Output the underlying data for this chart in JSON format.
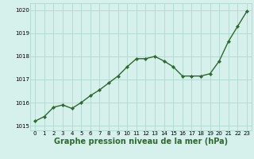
{
  "x": [
    0,
    1,
    2,
    3,
    4,
    5,
    6,
    7,
    8,
    9,
    10,
    11,
    12,
    13,
    14,
    15,
    16,
    17,
    18,
    19,
    20,
    21,
    22,
    23
  ],
  "y": [
    1015.2,
    1015.4,
    1015.8,
    1015.9,
    1015.75,
    1016.0,
    1016.3,
    1016.55,
    1016.85,
    1017.15,
    1017.55,
    1017.9,
    1017.9,
    1018.0,
    1017.8,
    1017.55,
    1017.15,
    1017.15,
    1017.15,
    1017.25,
    1017.8,
    1018.65,
    1019.3,
    1019.95
  ],
  "line_color": "#2d6a2d",
  "marker_color": "#2d6a2d",
  "bg_color": "#d6f0ec",
  "grid_color": "#b0d8d0",
  "xlabel": "Graphe pression niveau de la mer (hPa)",
  "ylim": [
    1014.8,
    1020.3
  ],
  "xlim": [
    -0.5,
    23.5
  ],
  "yticks": [
    1015,
    1016,
    1017,
    1018,
    1019,
    1020
  ],
  "xticks": [
    0,
    1,
    2,
    3,
    4,
    5,
    6,
    7,
    8,
    9,
    10,
    11,
    12,
    13,
    14,
    15,
    16,
    17,
    18,
    19,
    20,
    21,
    22,
    23
  ],
  "tick_label_fontsize": 5,
  "xlabel_fontsize": 7,
  "line_width": 1.0,
  "marker_size": 2.2
}
